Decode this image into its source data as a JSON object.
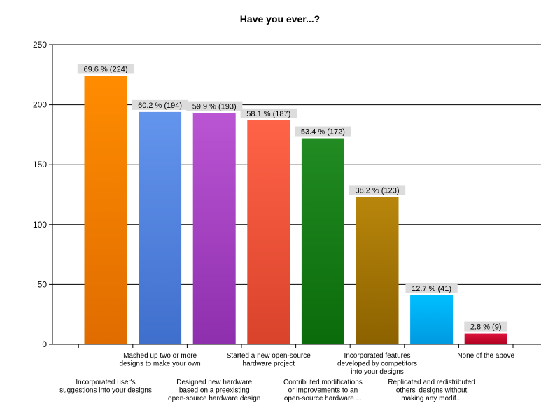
{
  "chart_data": {
    "type": "bar",
    "title": "Have you ever...?",
    "xlabel": "",
    "ylabel": "",
    "ylim": [
      0,
      250
    ],
    "yticks": [
      0,
      50,
      100,
      150,
      200,
      250
    ],
    "grid": true,
    "legend": "none",
    "categories": [
      [
        "Incorporated user's",
        "suggestions into your designs"
      ],
      [
        "Mashed up two or more",
        "designs to make your own"
      ],
      [
        "Designed new hardware",
        "based on a preexisting",
        "open-source hardware design"
      ],
      [
        "Started a new open-source",
        "hardware project"
      ],
      [
        "Contributed modifications",
        "or improvements to an",
        "open-source hardware ..."
      ],
      [
        "Incorporated features",
        "developed by competitors",
        "into your designs"
      ],
      [
        "Replicated and redistributed",
        "others' designs without",
        "making any modif..."
      ],
      [
        "None of the above"
      ]
    ],
    "values": [
      224,
      194,
      193,
      187,
      172,
      123,
      41,
      9
    ],
    "data_labels": [
      "69.6 % (224)",
      "60.2 % (194)",
      "59.9 % (193)",
      "58.1 % (187)",
      "53.4 % (172)",
      "38.2 % (123)",
      "12.7 % (41)",
      "2.8 % (9)"
    ],
    "colors": [
      [
        "#ff8c00",
        "#e06c00"
      ],
      [
        "#6495ed",
        "#3f6fcc"
      ],
      [
        "#ba55d3",
        "#8e2fae"
      ],
      [
        "#ff6347",
        "#d9432b"
      ],
      [
        "#228b22",
        "#0a6b0a"
      ],
      [
        "#b8860b",
        "#8c6200"
      ],
      [
        "#00bfff",
        "#0099e0"
      ],
      [
        "#dc143c",
        "#b00020"
      ]
    ]
  }
}
